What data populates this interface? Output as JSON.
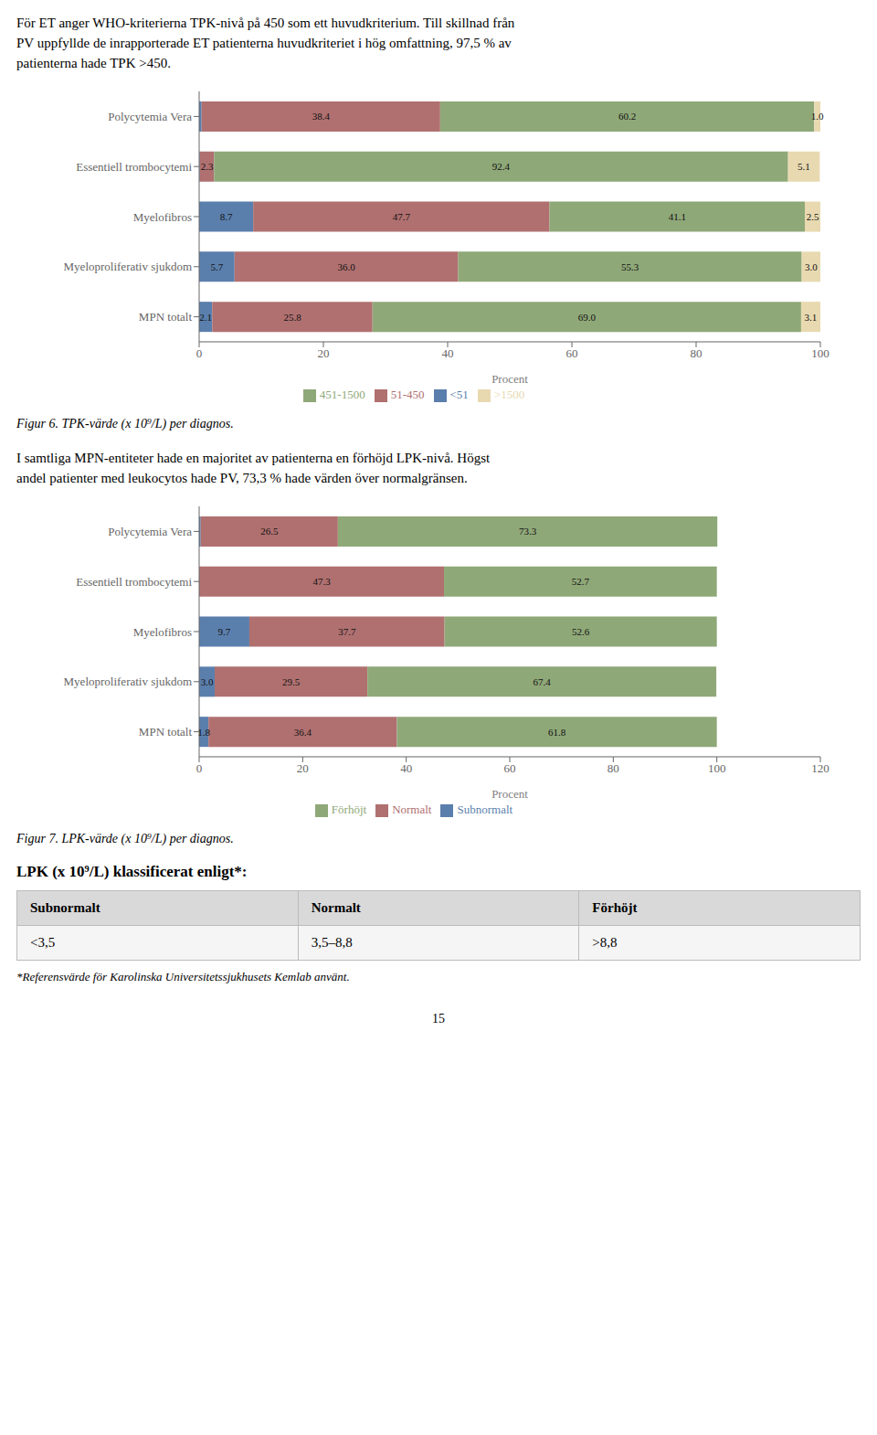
{
  "chart_data": [
    {
      "type": "bar",
      "orientation": "horizontal",
      "stacked": true,
      "data_labels": true,
      "grid": false,
      "legend": "bottom",
      "title": "Figur 6. TPK-värde (x 10⁹/L) per diagnos.",
      "xlabel": "Procent",
      "categories": [
        "Polycytemia Vera",
        "Essentiell trombocytemi",
        "Myelofibros",
        "Myeloproliferativ sjukdom",
        "MPN totalt"
      ],
      "series": [
        {
          "name": "<51",
          "color": "#5b7fad",
          "values": [
            0.4,
            0.1,
            8.7,
            5.7,
            2.1
          ],
          "value_labels": [
            null,
            null,
            "8.7",
            "5.7",
            "2.1"
          ]
        },
        {
          "name": "51-450",
          "color": "#b07070",
          "values": [
            38.4,
            2.3,
            47.7,
            36.0,
            25.8
          ],
          "value_labels": [
            "38.4",
            "2.3",
            "47.7",
            "36.0",
            "25.8"
          ]
        },
        {
          "name": "451-1500",
          "color": "#8fa878",
          "values": [
            60.2,
            92.4,
            41.1,
            55.3,
            69.0
          ],
          "value_labels": [
            "60.2",
            "92.4",
            "41.1",
            "55.3",
            "69.0"
          ]
        },
        {
          "name": ">1500",
          "color": "#e8d9b0",
          "values": [
            1.0,
            5.1,
            2.5,
            3.0,
            3.1
          ],
          "value_labels": [
            "1.0",
            "5.1",
            "2.5",
            "3.0",
            "3.1"
          ]
        }
      ],
      "xlim": [
        0,
        100
      ],
      "xticks": [
        0,
        20,
        40,
        60,
        80,
        100
      ]
    },
    {
      "type": "bar",
      "orientation": "horizontal",
      "stacked": true,
      "data_labels": true,
      "grid": false,
      "legend": "bottom",
      "title": "Figur 7. LPK-värde (x 10⁹/L) per diagnos.",
      "xlabel": "Procent",
      "categories": [
        "Polycytemia Vera",
        "Essentiell trombocytemi",
        "Myelofibros",
        "Myeloproliferativ sjukdom",
        "MPN totalt"
      ],
      "series": [
        {
          "name": "Subnormalt",
          "color": "#5b7fad",
          "values": [
            0.3,
            0.0,
            9.7,
            3.0,
            1.8
          ],
          "value_labels": [
            null,
            null,
            "9.7",
            "3.0",
            "1.8"
          ]
        },
        {
          "name": "Normalt",
          "color": "#b07070",
          "values": [
            26.5,
            47.3,
            37.7,
            29.5,
            36.4
          ],
          "value_labels": [
            "26.5",
            "47.3",
            "37.7",
            "29.5",
            "36.4"
          ]
        },
        {
          "name": "Förhöjt",
          "color": "#8fa878",
          "values": [
            73.3,
            52.7,
            52.6,
            67.4,
            61.8
          ],
          "value_labels": [
            "73.3",
            "52.7",
            "52.6",
            "67.4",
            "61.8"
          ]
        }
      ],
      "xlim": [
        0,
        120
      ],
      "xticks": [
        0,
        20,
        40,
        60,
        80,
        100,
        120
      ]
    }
  ],
  "intro_text": [
    "För ET anger WHO-kriterierna TPK-nivå på 450 som ett huvudkriterium. Till skillnad från",
    "PV uppfyllde de inrapporterade ET patienterna huvudkriteriet i hög omfattning, 97,5 % av",
    "patienterna hade TPK >450."
  ],
  "between_text": [
    "I samtliga MPN-entiteter hade en majoritet av patienterna en förhöjd LPK-nivå. Högst",
    "andel patienter med leukocytos hade PV, 73,3 % hade värden över normalgränsen."
  ],
  "table": {
    "title": "LPK (x 10⁹/L) klassificerat enligt*:",
    "headers": [
      "Subnormalt",
      "Normalt",
      "Förhöjt"
    ],
    "values": [
      "<3,5",
      "3,5–8,8",
      ">8,8"
    ],
    "footnote": "*Referensvärde för Karolinska Universitetssjukhusets Kemlab använt."
  },
  "page_number": "15"
}
